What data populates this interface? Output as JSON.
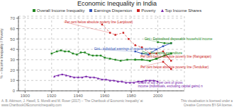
{
  "chart_data": {
    "type": "line",
    "title": "Economic Inequality in India",
    "y_label": "% -- Income Inequality / Poverty",
    "xlim": [
      1895,
      2020
    ],
    "ylim": [
      0,
      72
    ],
    "xticks": [
      1900,
      1920,
      1940,
      1960,
      1980,
      2000
    ],
    "yticks": [
      0,
      10,
      20,
      30,
      40,
      50,
      60,
      70
    ],
    "grid": true,
    "legend": "top",
    "series": [
      {
        "name": "Overall Income Inequality",
        "color": "#228822",
        "marker": "square",
        "line_style": "solid",
        "x": [
          1920,
          1924,
          1927,
          1930,
          1933,
          1936,
          1939,
          1942,
          1945,
          1948,
          1951,
          1954,
          1957,
          1960,
          1964,
          1968,
          1972,
          1977,
          1983,
          1988,
          1994,
          1999,
          2005,
          2010
        ],
        "values": [
          36,
          38,
          39,
          38,
          38,
          36,
          35,
          37,
          37,
          35,
          34,
          34,
          34,
          32,
          31,
          30,
          29,
          30,
          30,
          30,
          29,
          31,
          34,
          36
        ]
      },
      {
        "name": "Earnings Dispersion",
        "color": "#3355bb",
        "marker": "square",
        "line_style": "solid",
        "x": [
          1983,
          1988,
          1993,
          1999,
          2004,
          2010
        ],
        "values": [
          38,
          36,
          35,
          40,
          43,
          46
        ]
      },
      {
        "name": "Overall Income Inequality",
        "color": "#228822",
        "marker": "square",
        "line_style": "solid",
        "x": [
          2000,
          2005,
          2010
        ],
        "values": [
          47,
          46,
          46
        ]
      },
      {
        "name": "Overall Income Inequality",
        "color": "#228822",
        "marker": "square",
        "line_style": "solid",
        "x": [
          1983,
          1988,
          1994,
          1999,
          2005,
          2010
        ],
        "values": [
          30,
          30,
          29,
          31,
          34,
          36
        ]
      },
      {
        "name": "Poverty",
        "color": "#cc2222",
        "marker": "square",
        "line_style": "dashed",
        "x": [
          1958,
          1964,
          1968,
          1974,
          1978,
          1983,
          1988,
          1994,
          1999
        ],
        "values": [
          64,
          56,
          54,
          56,
          50,
          44,
          42,
          36,
          36
        ]
      },
      {
        "name": "Poverty",
        "color": "#cc2222",
        "marker": "square",
        "line_style": "solid",
        "x": [
          2004,
          2010
        ],
        "values": [
          38,
          29
        ]
      },
      {
        "name": "Poverty",
        "color": "#cc2222",
        "marker": "square",
        "line_style": "solid",
        "x": [
          2004,
          2010
        ],
        "values": [
          28,
          21
        ]
      },
      {
        "name": "Top Income Shares",
        "color": "#7722aa",
        "marker": "triangle",
        "line_style": "solid",
        "x": [
          1922,
          1925,
          1928,
          1931,
          1934,
          1937,
          1940,
          1943,
          1946,
          1949,
          1952,
          1955,
          1958,
          1961,
          1964,
          1967,
          1970,
          1973,
          1976,
          1979,
          1982,
          1985,
          1988,
          1991,
          1994,
          1997,
          2000
        ],
        "values": [
          14,
          15,
          16,
          15,
          14,
          13,
          13,
          13,
          14,
          13,
          13,
          12,
          11,
          11,
          10,
          10,
          9,
          9,
          8,
          8,
          8,
          9,
          9,
          10,
          10,
          10,
          9
        ]
      }
    ],
    "annotations": [
      {
        "text": "Per cent below absolute poverty line (Lanjdouw)",
        "x": 1930,
        "y": 66.5,
        "color": "#cc2222"
      },
      {
        "text": "Gini - individual earnings of regular workers",
        "x": 1952,
        "y": 40.5,
        "color": "#3355bb"
      },
      {
        "text": "Gini - Equivalised disposable household income",
        "x": 1990,
        "y": 50,
        "color": "#228822"
      },
      {
        "text": "Gini - Per capita expenditure",
        "x": 1988,
        "y": 39,
        "color": "#228822"
      },
      {
        "text": "Per cent below absolute poverty line (Rangarajan)",
        "x": 1987,
        "y": 33,
        "color": "#cc2222"
      },
      {
        "text": "Per cent below absolute poverty line (Tendulkar)",
        "x": 1987,
        "y": 23,
        "color": "#cc2222"
      },
      {
        "text": "Share of top 1 per cent of gross\nincome (individuals, excluding capital gains) n",
        "x": 1985,
        "y": 6.5,
        "color": "#7722aa"
      }
    ],
    "connector_lines": [
      {
        "x1": 1964,
        "y1": 56,
        "x2": 1929,
        "y2": 66.5,
        "color": "#cc2222"
      },
      {
        "x1": 1983,
        "y1": 38,
        "x2": 1952,
        "y2": 40,
        "color": "#3355bb"
      },
      {
        "x1": 2000,
        "y1": 47,
        "x2": 1990,
        "y2": 50,
        "color": "#228822"
      },
      {
        "x1": 1999,
        "y1": 31,
        "x2": 1988,
        "y2": 39,
        "color": "#228822"
      },
      {
        "x1": 2004,
        "y1": 38,
        "x2": 1987,
        "y2": 33,
        "color": "#cc2222"
      },
      {
        "x1": 2004,
        "y1": 28,
        "x2": 1987,
        "y2": 23,
        "color": "#cc2222"
      }
    ],
    "source": "A. B. Atkinson, J. Hasell, S. Morelli and M. Roser (2017) – 'The Chartbook of Economic Inequality' at www.ChartbookOfEconomicInequality.com",
    "note": "This visualisation is licensed under a\nCreative Commons BY-SA license."
  }
}
